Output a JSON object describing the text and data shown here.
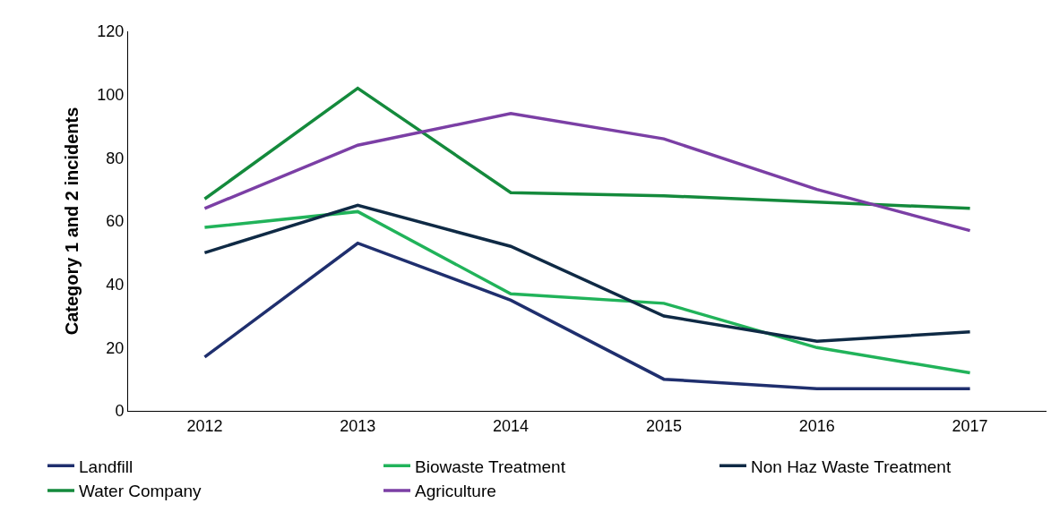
{
  "chart_data": {
    "type": "line",
    "ylabel": "Category 1 and 2 incidents",
    "categories": [
      "2012",
      "2013",
      "2014",
      "2015",
      "2016",
      "2017"
    ],
    "ylim": [
      0,
      120
    ],
    "yticks": [
      0,
      20,
      40,
      60,
      80,
      100,
      120
    ],
    "legend": "bottom",
    "marker": "none",
    "line_style": "solid",
    "series": [
      {
        "name": "Landfill",
        "color": "#1f2f6e",
        "values": [
          17,
          53,
          35,
          10,
          7,
          7
        ]
      },
      {
        "name": "Biowaste Treatment",
        "color": "#21b35a",
        "values": [
          58,
          63,
          37,
          34,
          20,
          12
        ]
      },
      {
        "name": "Non Haz Waste Treatment",
        "color": "#0f2a45",
        "values": [
          50,
          65,
          52,
          30,
          22,
          25
        ]
      },
      {
        "name": "Water Company",
        "color": "#148a3c",
        "values": [
          67,
          102,
          69,
          68,
          66,
          64
        ]
      },
      {
        "name": "Agriculture",
        "color": "#7b3fa5",
        "values": [
          64,
          84,
          94,
          86,
          70,
          57
        ]
      }
    ]
  }
}
